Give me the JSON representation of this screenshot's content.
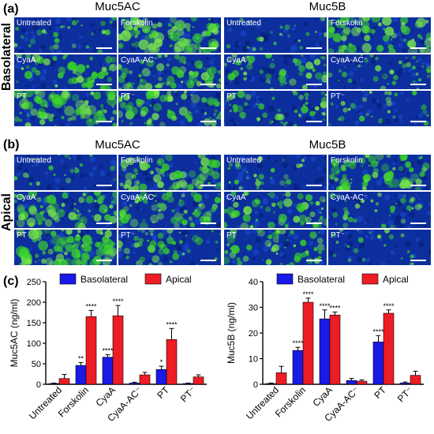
{
  "panels": {
    "a": {
      "letter": "(a)",
      "side_label": "Basolateral"
    },
    "b": {
      "letter": "(b)",
      "side_label": "Apical"
    },
    "c": {
      "letter": "(c)"
    }
  },
  "image_grids": [
    {
      "id": "a-muc5ac",
      "title": "Muc5AC",
      "tiles": [
        "Untreated",
        "Forskolin",
        "CyaA",
        "CyaA-AC⁻",
        "PT",
        "PT⁻"
      ],
      "green_level": [
        0.15,
        0.65,
        0.45,
        0.45,
        0.7,
        0.5
      ]
    },
    {
      "id": "a-muc5b",
      "title": "Muc5B",
      "tiles": [
        "Untreated",
        "Forskolin",
        "CyaA",
        "CyaA-AC⁻",
        "PT",
        "PT⁻"
      ],
      "green_level": [
        0.1,
        0.55,
        0.35,
        0.2,
        0.35,
        0.15
      ]
    },
    {
      "id": "b-muc5ac",
      "title": "Muc5AC",
      "tiles": [
        "Untreated",
        "Forskolin",
        "CyaA",
        "CyaA-AC⁻",
        "PT",
        "PT⁻"
      ],
      "green_level": [
        0.1,
        0.5,
        0.55,
        0.45,
        0.65,
        0.35
      ]
    },
    {
      "id": "b-muc5b",
      "title": "Muc5B",
      "tiles": [
        "Untreated",
        "Forskolin",
        "CyaA",
        "CyaA-AC⁻",
        "PT",
        "PT⁻"
      ],
      "green_level": [
        0.15,
        0.5,
        0.45,
        0.2,
        0.4,
        0.1
      ]
    }
  ],
  "colors": {
    "basolateral": "#1a1ae6",
    "apical": "#ee1c24",
    "tile_blue": "#0d2f9e",
    "tile_green": "#39d22b"
  },
  "chart_data": [
    {
      "type": "bar",
      "ylabel": "Muc5AC (ng/ml)",
      "ylim": [
        0,
        250
      ],
      "yticks": [
        0,
        50,
        100,
        150,
        200,
        250
      ],
      "categories": [
        "Untreated",
        "Forskolin",
        "CyaA",
        "CyaA-AC⁻",
        "PT",
        "PT⁻"
      ],
      "legend_position": "top",
      "series": [
        {
          "name": "Basolateral",
          "values": [
            2,
            46,
            66,
            3,
            36,
            2
          ],
          "errors": [
            1,
            7,
            6,
            2,
            8,
            1
          ],
          "annotations": [
            "",
            "**",
            "****",
            "",
            "*",
            ""
          ]
        },
        {
          "name": "Apical",
          "values": [
            14,
            165,
            167,
            23,
            109,
            18
          ],
          "errors": [
            10,
            15,
            25,
            6,
            27,
            5
          ],
          "annotations": [
            "",
            "****",
            "****",
            "",
            "****",
            ""
          ]
        }
      ]
    },
    {
      "type": "bar",
      "ylabel": "Muc5B (ng/ml)",
      "ylim": [
        0,
        40
      ],
      "yticks": [
        0,
        10,
        20,
        30,
        40
      ],
      "categories": [
        "Untreated",
        "Forskolin",
        "CyaA",
        "CyaA-AC⁻",
        "PT",
        "PT⁻"
      ],
      "legend_position": "top",
      "series": [
        {
          "name": "Basolateral",
          "values": [
            0.3,
            13.2,
            25.5,
            1.5,
            16.5,
            0.5
          ],
          "errors": [
            0.2,
            1.2,
            3.5,
            0.8,
            2.5,
            0.4
          ],
          "annotations": [
            "",
            "****",
            "****",
            "",
            "****",
            ""
          ]
        },
        {
          "name": "Apical",
          "values": [
            4.5,
            32,
            27,
            1.2,
            27.7,
            3.5
          ],
          "errors": [
            2.5,
            1.6,
            1.2,
            0.5,
            1.3,
            1.6
          ],
          "annotations": [
            "",
            "****",
            "****",
            "",
            "****",
            ""
          ]
        }
      ]
    }
  ]
}
